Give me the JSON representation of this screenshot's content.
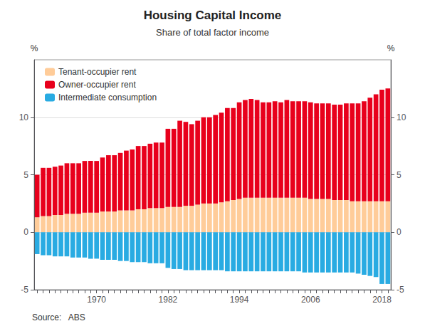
{
  "chart_data": {
    "type": "bar",
    "title": "Housing Capital Income",
    "subtitle": "Share of total factor income",
    "ylabel": "%",
    "y2label": "%",
    "source": "Source:   ABS",
    "categories": [
      null,
      null,
      null,
      null,
      null,
      null,
      null,
      null,
      null,
      null,
      1970,
      null,
      null,
      null,
      null,
      null,
      null,
      null,
      null,
      null,
      null,
      null,
      1982,
      null,
      null,
      null,
      null,
      null,
      null,
      null,
      null,
      null,
      null,
      null,
      1994,
      null,
      null,
      null,
      null,
      null,
      null,
      null,
      null,
      null,
      null,
      null,
      2006,
      null,
      null,
      null,
      null,
      null,
      null,
      null,
      null,
      null,
      null,
      null,
      2018,
      null
    ],
    "series": [
      {
        "name": "Tenant-occupier rent",
        "color": "#FFCC99",
        "values": [
          1.3,
          1.4,
          1.4,
          1.5,
          1.5,
          1.6,
          1.6,
          1.6,
          1.7,
          1.7,
          1.7,
          1.8,
          1.8,
          1.8,
          1.9,
          1.9,
          1.9,
          2.0,
          2.0,
          2.1,
          2.1,
          2.1,
          2.2,
          2.2,
          2.2,
          2.3,
          2.3,
          2.4,
          2.5,
          2.5,
          2.5,
          2.6,
          2.7,
          2.8,
          2.9,
          3.0,
          3.0,
          3.0,
          3.0,
          3.0,
          3.0,
          3.0,
          3.0,
          3.0,
          3.0,
          3.0,
          2.9,
          2.9,
          2.9,
          2.9,
          2.8,
          2.8,
          2.8,
          2.7,
          2.7,
          2.7,
          2.7,
          2.7,
          2.7,
          2.7
        ]
      },
      {
        "name": "Owner-occupier rent",
        "color": "#E8001C",
        "values": [
          3.7,
          4.2,
          4.2,
          4.2,
          4.3,
          4.4,
          4.4,
          4.4,
          4.5,
          4.5,
          4.5,
          4.7,
          4.9,
          4.9,
          5.0,
          5.2,
          5.3,
          5.5,
          5.5,
          5.6,
          5.7,
          5.7,
          6.8,
          6.8,
          7.5,
          7.3,
          7.1,
          7.3,
          7.5,
          7.5,
          7.7,
          7.8,
          8.1,
          8.0,
          8.4,
          8.5,
          8.6,
          8.5,
          8.3,
          8.3,
          8.4,
          8.3,
          8.5,
          8.4,
          8.4,
          8.4,
          8.4,
          8.3,
          8.3,
          8.3,
          8.3,
          8.3,
          8.4,
          8.5,
          8.5,
          8.7,
          9.0,
          9.3,
          9.7,
          9.8
        ]
      },
      {
        "name": "Intermediate consumption",
        "color": "#29ABE2",
        "values": [
          -1.9,
          -2.0,
          -2.0,
          -2.1,
          -2.1,
          -2.1,
          -2.2,
          -2.2,
          -2.2,
          -2.3,
          -2.3,
          -2.4,
          -2.4,
          -2.4,
          -2.5,
          -2.5,
          -2.6,
          -2.6,
          -2.6,
          -2.7,
          -2.7,
          -2.7,
          -3.1,
          -3.2,
          -3.2,
          -3.3,
          -3.3,
          -3.3,
          -3.3,
          -3.3,
          -3.3,
          -3.3,
          -3.4,
          -3.4,
          -3.4,
          -3.4,
          -3.4,
          -3.4,
          -3.4,
          -3.4,
          -3.4,
          -3.4,
          -3.4,
          -3.4,
          -3.4,
          -3.5,
          -3.5,
          -3.5,
          -3.5,
          -3.5,
          -3.5,
          -3.5,
          -3.5,
          -3.5,
          -3.6,
          -3.7,
          -3.8,
          -3.9,
          -4.5,
          -4.5
        ]
      }
    ],
    "stacked": true,
    "ylim": [
      -5,
      15
    ],
    "yticks": [
      -5,
      0,
      5,
      10
    ],
    "y2lim": [
      -5,
      15
    ],
    "y2ticks": [
      -5,
      0,
      5,
      10
    ],
    "grid": true,
    "legend": "upper left"
  }
}
